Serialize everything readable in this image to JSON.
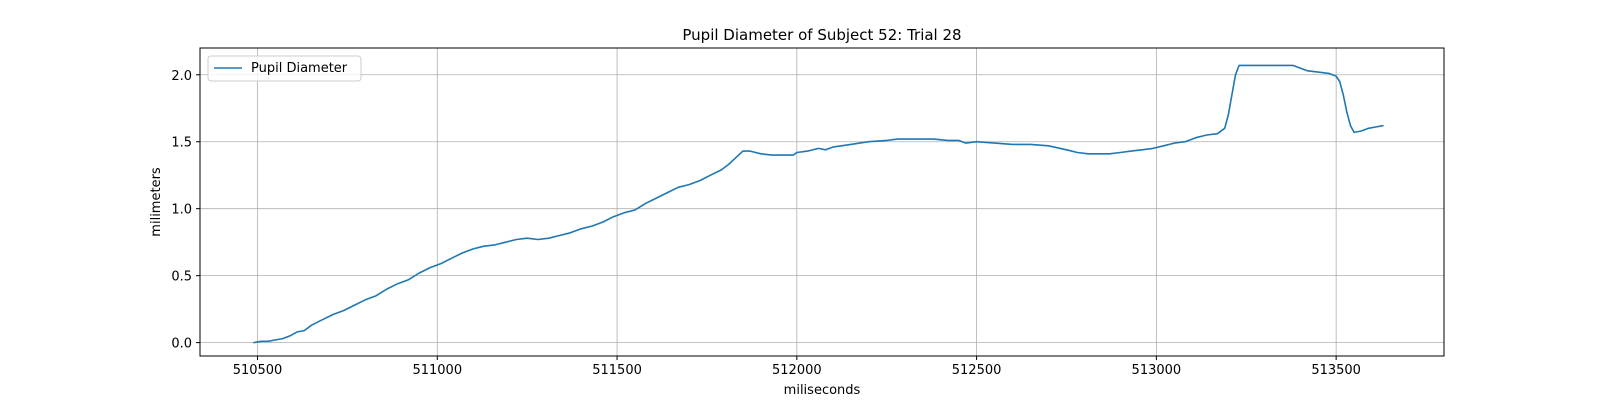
{
  "chart_data": {
    "type": "line",
    "title": "Pupil Diameter of Subject 52: Trial 28",
    "xlabel": "miliseconds",
    "ylabel": "milimeters",
    "xlim": [
      510340,
      513800
    ],
    "ylim": [
      -0.1,
      2.2
    ],
    "xticks": [
      510500,
      511000,
      511500,
      512000,
      512500,
      513000,
      513500
    ],
    "yticks": [
      0.0,
      0.5,
      1.0,
      1.5,
      2.0
    ],
    "xtick_labels": [
      "510500",
      "511000",
      "511500",
      "512000",
      "512500",
      "513000",
      "513500"
    ],
    "ytick_labels": [
      "0.0",
      "0.5",
      "1.0",
      "1.5",
      "2.0"
    ],
    "grid": true,
    "legend_position": "top-left",
    "series": [
      {
        "name": "Pupil Diameter",
        "color": "#1f77b4",
        "x": [
          510490,
          510510,
          510530,
          510550,
          510570,
          510590,
          510610,
          510630,
          510650,
          510680,
          510710,
          510740,
          510770,
          510800,
          510830,
          510860,
          510890,
          510920,
          510950,
          510980,
          511010,
          511040,
          511070,
          511100,
          511130,
          511160,
          511190,
          511220,
          511250,
          511280,
          511310,
          511340,
          511370,
          511400,
          511430,
          511460,
          511490,
          511520,
          511550,
          511580,
          511610,
          511640,
          511670,
          511700,
          511730,
          511760,
          511790,
          511810,
          511830,
          511850,
          511870,
          511900,
          511930,
          511960,
          511990,
          512000,
          512030,
          512060,
          512080,
          512100,
          512150,
          512200,
          512250,
          512280,
          512320,
          512350,
          512380,
          512420,
          512450,
          512470,
          512500,
          512550,
          512600,
          512650,
          512700,
          512750,
          512780,
          512810,
          512840,
          512870,
          512900,
          512930,
          512960,
          512990,
          513020,
          513050,
          513080,
          513110,
          513140,
          513170,
          513190,
          513200,
          513210,
          513220,
          513230,
          513240,
          513260,
          513300,
          513350,
          513380,
          513400,
          513420,
          513450,
          513480,
          513500,
          513510,
          513520,
          513530,
          513540,
          513550,
          513570,
          513590,
          513610,
          513630
        ],
        "values": [
          0.0,
          0.01,
          0.01,
          0.02,
          0.03,
          0.05,
          0.08,
          0.09,
          0.13,
          0.17,
          0.21,
          0.24,
          0.28,
          0.32,
          0.35,
          0.4,
          0.44,
          0.47,
          0.52,
          0.56,
          0.59,
          0.63,
          0.67,
          0.7,
          0.72,
          0.73,
          0.75,
          0.77,
          0.78,
          0.77,
          0.78,
          0.8,
          0.82,
          0.85,
          0.87,
          0.9,
          0.94,
          0.97,
          0.99,
          1.04,
          1.08,
          1.12,
          1.16,
          1.18,
          1.21,
          1.25,
          1.29,
          1.33,
          1.38,
          1.43,
          1.43,
          1.41,
          1.4,
          1.4,
          1.4,
          1.42,
          1.43,
          1.45,
          1.44,
          1.46,
          1.48,
          1.5,
          1.51,
          1.52,
          1.52,
          1.52,
          1.52,
          1.51,
          1.51,
          1.49,
          1.5,
          1.49,
          1.48,
          1.48,
          1.47,
          1.44,
          1.42,
          1.41,
          1.41,
          1.41,
          1.42,
          1.43,
          1.44,
          1.45,
          1.47,
          1.49,
          1.5,
          1.53,
          1.55,
          1.56,
          1.6,
          1.7,
          1.85,
          2.0,
          2.07,
          2.07,
          2.07,
          2.07,
          2.07,
          2.07,
          2.05,
          2.03,
          2.02,
          2.01,
          1.99,
          1.95,
          1.85,
          1.72,
          1.62,
          1.57,
          1.58,
          1.6,
          1.61,
          1.62
        ]
      }
    ]
  }
}
